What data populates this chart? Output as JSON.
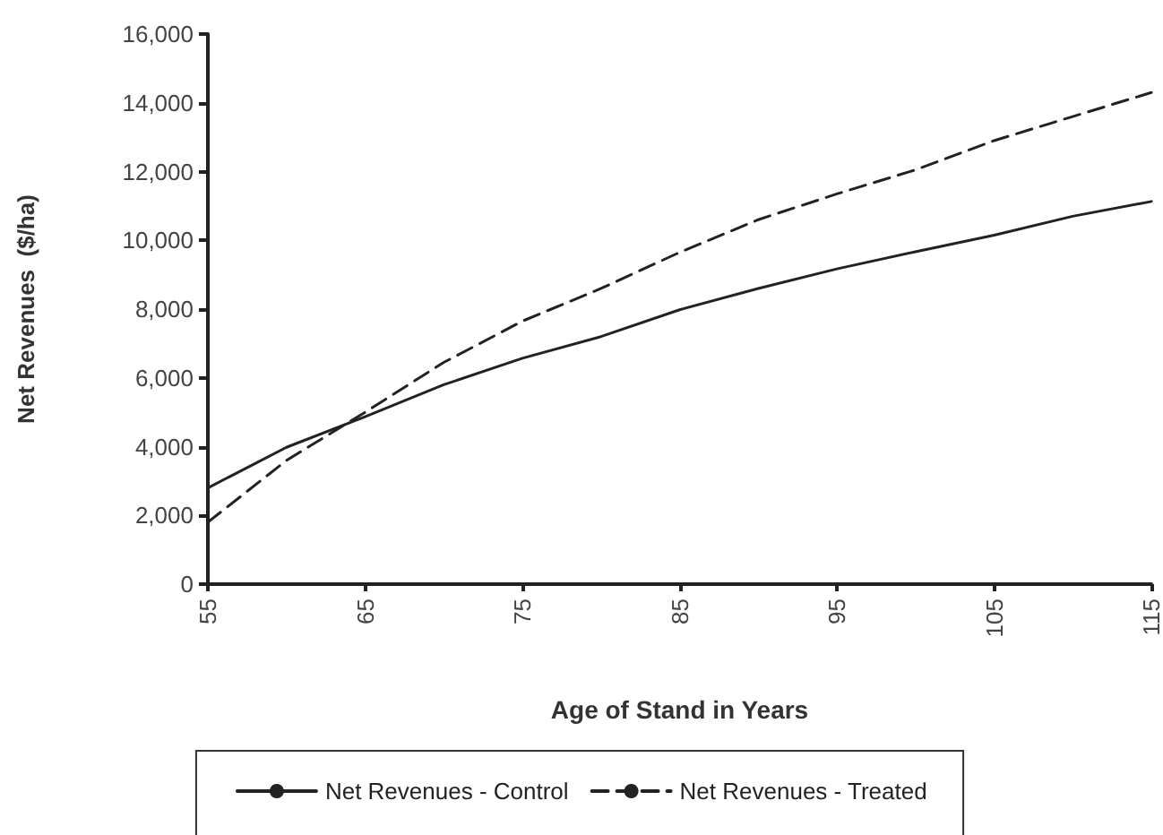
{
  "chart_data": {
    "type": "line",
    "xlabel": "Age of Stand in Years",
    "ylabel": "Net Revenues  ($/ha)",
    "x": [
      55,
      60,
      65,
      70,
      75,
      80,
      85,
      90,
      95,
      100,
      105,
      110,
      115
    ],
    "series": [
      {
        "name": "Net Revenues - Control",
        "color": "#222222",
        "line_style": "solid",
        "values": [
          2800,
          3980,
          4870,
          5800,
          6570,
          7200,
          7980,
          8600,
          9170,
          9670,
          10150,
          10700,
          11130
        ]
      },
      {
        "name": "Net Revenues - Treated",
        "color": "#222222",
        "line_style": "dashed",
        "values": [
          1800,
          3600,
          5000,
          6450,
          7650,
          8600,
          9650,
          10600,
          11350,
          12050,
          12900,
          13600,
          14300
        ]
      }
    ],
    "xlim": [
      55,
      115
    ],
    "xticks": [
      55,
      65,
      75,
      85,
      95,
      105,
      115
    ],
    "ylim": [
      0,
      16000
    ],
    "yticks": [
      0,
      {
        "value": 2000,
        "label": "2,000"
      },
      {
        "value": 4000,
        "label": "4,000"
      },
      {
        "value": 6000,
        "label": "6,000"
      },
      {
        "value": 8000,
        "label": "8,000"
      },
      {
        "value": 10000,
        "label": "10,000"
      },
      {
        "value": 12000,
        "label": "12,000"
      },
      {
        "value": 14000,
        "label": "14,000"
      },
      {
        "value": 16000,
        "label": "16,000"
      }
    ],
    "grid": false,
    "legend": "bottom",
    "marker": "none"
  }
}
